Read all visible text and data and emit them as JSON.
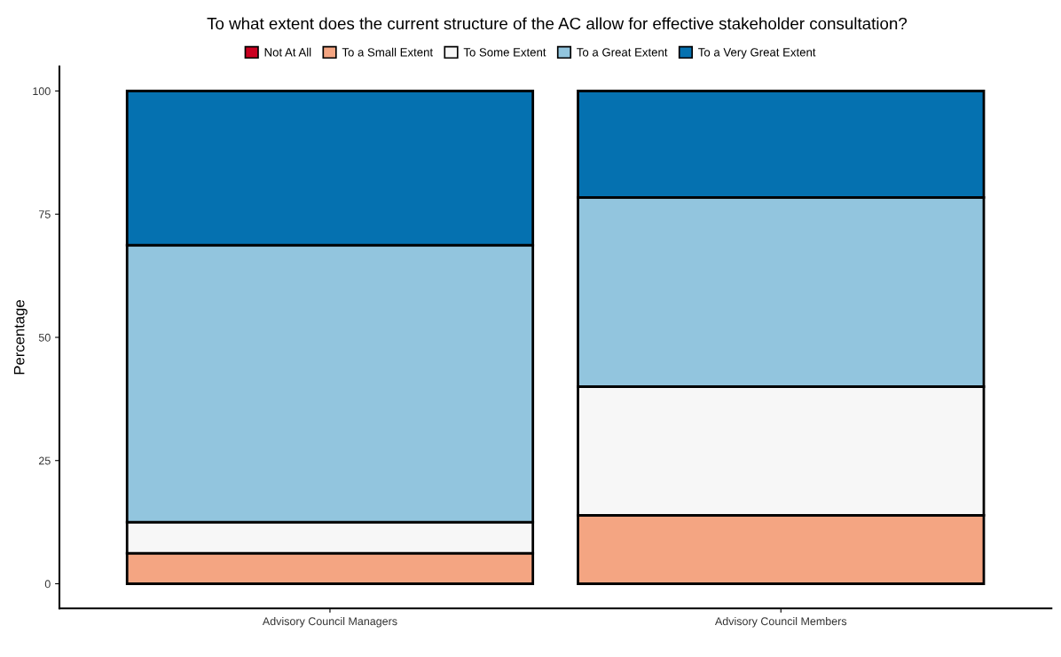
{
  "chart_data": {
    "type": "bar",
    "title": "To what extent does the current structure of the AC allow for effective stakeholder consultation?",
    "ylabel": "Percentage",
    "categories": [
      "Advisory Council Managers",
      "Advisory Council Members"
    ],
    "stacked": true,
    "legend": "top",
    "grid": false,
    "ylim": [
      -5,
      105
    ],
    "yticks": [
      0,
      25,
      50,
      75,
      100
    ],
    "series": [
      {
        "name": "Not At All",
        "color": "#ca0020",
        "values": [
          0,
          0
        ]
      },
      {
        "name": "To a Small Extent",
        "color": "#f4a582",
        "values": [
          6.2,
          13.9
        ]
      },
      {
        "name": "To Some Extent",
        "color": "#f7f7f7",
        "values": [
          6.3,
          26.1
        ]
      },
      {
        "name": "To a Great Extent",
        "color": "#92c5de",
        "values": [
          56.2,
          38.4
        ]
      },
      {
        "name": "To a Very Great Extent",
        "color": "#0571b0",
        "values": [
          31.3,
          21.6
        ]
      }
    ]
  }
}
